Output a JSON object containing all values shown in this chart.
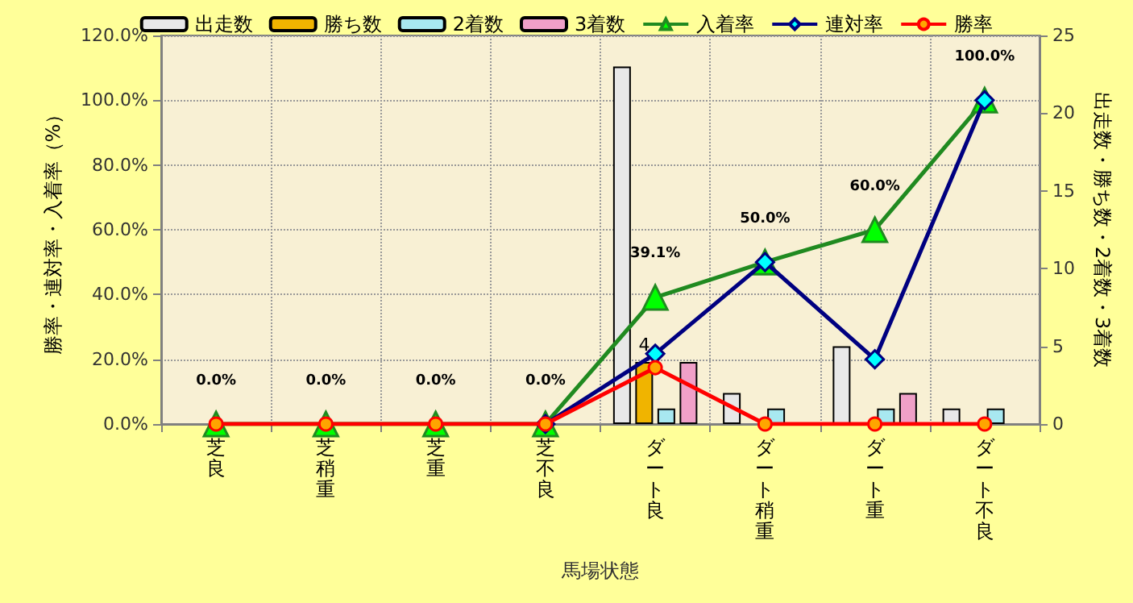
{
  "chart_data": {
    "type": "bar",
    "xlabel": "馬場状態",
    "ylabel": "勝率・連対率・入着率（%）",
    "y2label": "出走数・勝ち数・2着数・3着数",
    "categories": [
      "芝良",
      "芝稍重",
      "芝重",
      "芝不良",
      "ダート良",
      "ダート稍重",
      "ダート重",
      "ダート不良"
    ],
    "series": [
      {
        "name": "出走数",
        "axis": "y2",
        "color": "#e8e8e8",
        "values": [
          null,
          null,
          null,
          null,
          23,
          2,
          5,
          1
        ]
      },
      {
        "name": "勝ち数",
        "axis": "y2",
        "color": "#f0b400",
        "values": [
          null,
          null,
          null,
          null,
          4,
          null,
          null,
          null
        ],
        "value_labels": [
          null,
          null,
          null,
          null,
          "4",
          null,
          null,
          null
        ]
      },
      {
        "name": "2着数",
        "axis": "y2",
        "color": "#a8e8f0",
        "values": [
          null,
          null,
          null,
          null,
          1,
          1,
          1,
          1
        ]
      },
      {
        "name": "3着数",
        "axis": "y2",
        "color": "#f0a0c8",
        "values": [
          null,
          null,
          null,
          null,
          4,
          null,
          2,
          null
        ]
      },
      {
        "name": "入着率",
        "type": "line",
        "marker": "triangle",
        "color": "#208a20",
        "values": [
          0,
          0,
          0,
          0,
          39.1,
          50,
          60,
          100
        ],
        "value_labels": [
          "0.0%",
          "0.0%",
          "0.0%",
          "0.0%",
          "39.1%",
          "50.0%",
          "60.0%",
          "100.0%"
        ]
      },
      {
        "name": "連対率",
        "type": "line",
        "marker": "diamond",
        "color": "#000080",
        "values": [
          null,
          null,
          null,
          0,
          21.7,
          50,
          20,
          100
        ]
      },
      {
        "name": "勝率",
        "type": "line",
        "marker": "circle",
        "color": "#ff0000",
        "values": [
          0,
          0,
          0,
          0,
          17.4,
          0,
          0,
          0
        ]
      }
    ],
    "ylim": [
      0,
      120
    ],
    "yticks": [
      {
        "value": 0,
        "label": "0.0%"
      },
      {
        "value": 20,
        "label": "20.0%"
      },
      {
        "value": 40,
        "label": "40.0%"
      },
      {
        "value": 60,
        "label": "60.0%"
      },
      {
        "value": 80,
        "label": "80.0%"
      },
      {
        "value": 100,
        "label": "100.0%"
      },
      {
        "value": 120,
        "label": "120.0%"
      }
    ],
    "y2lim": [
      0,
      25
    ],
    "y2ticks": [
      0,
      5,
      10,
      15,
      20,
      25
    ],
    "grid": true,
    "legend": "top"
  }
}
